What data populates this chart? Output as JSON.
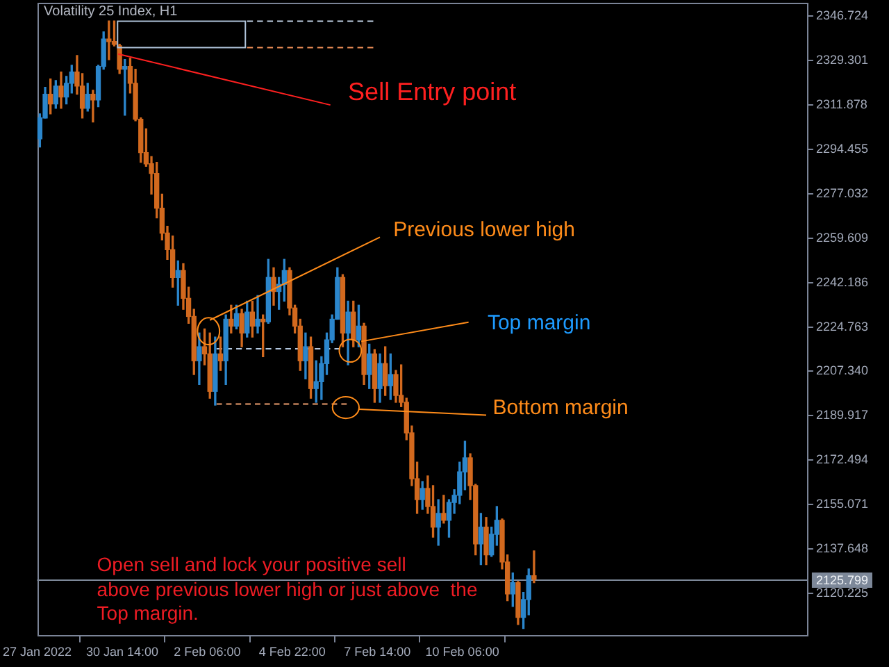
{
  "chart_data": {
    "type": "candlestick",
    "title": "Volatility 25 Index, H1",
    "annotations": [
      {
        "text": "Sell Entry point",
        "x": "2022-01-30T11:00",
        "y": 2331.9
      },
      {
        "text": "Previous lower high",
        "x": "2022-02-02T07:00",
        "y": 2223.1
      },
      {
        "text": "Top margin",
        "x": "2022-02-07T02:00",
        "y": 2219.1
      },
      "Bottom margin",
      "Open sell and lock your positive sell\nabove previous lower high or just above  the\nTop margin."
    ],
    "xlim": [
      "2022-01-27T22:00",
      "2022-02-21T02:00"
    ],
    "xticks": [
      {
        "value": "2022-01-27T22:00",
        "label": "27 Jan 2022"
      },
      {
        "value": "2022-01-30T14:00",
        "label": "30 Jan 14:00"
      },
      {
        "value": "2022-02-02T06:00",
        "label": "2 Feb 06:00"
      },
      {
        "value": "2022-02-04T22:00",
        "label": "4 Feb 22:00"
      },
      {
        "value": "2022-02-07T14:00",
        "label": "7 Feb 14:00"
      },
      {
        "value": "2022-02-10T06:00",
        "label": "10 Feb 06:00"
      }
    ],
    "ylim": [
      2103.2,
      2352.0
    ],
    "yticks": [
      2346.724,
      2329.301,
      2311.878,
      2294.455,
      2277.032,
      2259.609,
      2242.186,
      2224.763,
      {
        "value": 2207.34,
        "label": "2207.340"
      },
      2189.917,
      2172.494,
      2155.071,
      2137.648,
      2120.225
    ],
    "ref_lines": [
      {
        "axis": "y",
        "value": 2125.799,
        "label": "2125.799",
        "color": "#7d8899"
      }
    ],
    "series": [
      {
        "x": [
          "2022-01-28T00:00",
          "2022-01-28T04:00",
          "2022-01-28T08:00",
          "2022-01-28T12:00",
          "2022-01-28T16:00",
          "2022-01-28T20:00",
          "2022-01-29T00:00",
          "2022-01-29T04:00",
          "2022-01-29T08:00",
          "2022-01-29T12:00",
          "2022-01-29T16:00",
          "2022-01-29T20:00",
          "2022-01-30T00:00",
          "2022-01-30T04:00",
          "2022-01-30T08:00",
          "2022-01-30T12:00",
          "2022-01-30T16:00",
          "2022-01-30T20:00",
          "2022-01-31T00:00",
          "2022-01-31T04:00",
          "2022-01-31T08:00",
          "2022-01-31T12:00",
          "2022-01-31T16:00",
          "2022-01-31T20:00",
          "2022-02-01T00:00",
          "2022-02-01T04:00",
          "2022-02-01T08:00",
          "2022-02-01T12:00",
          "2022-02-01T16:00",
          "2022-02-01T20:00",
          "2022-02-02T00:00",
          "2022-02-02T04:00",
          "2022-02-02T08:00",
          "2022-02-02T12:00",
          "2022-02-02T16:00",
          "2022-02-02T20:00",
          "2022-02-03T00:00",
          "2022-02-03T04:00",
          "2022-02-03T08:00",
          "2022-02-03T12:00",
          "2022-02-03T16:00",
          "2022-02-03T20:00",
          "2022-02-04T00:00",
          "2022-02-04T04:00",
          "2022-02-04T08:00",
          "2022-02-04T12:00",
          "2022-02-04T16:00",
          "2022-02-04T20:00",
          "2022-02-05T00:00",
          "2022-02-05T04:00",
          "2022-02-05T08:00",
          "2022-02-05T12:00",
          "2022-02-05T16:00",
          "2022-02-05T20:00",
          "2022-02-06T00:00",
          "2022-02-06T04:00",
          "2022-02-06T08:00",
          "2022-02-06T12:00",
          "2022-02-06T16:00",
          "2022-02-06T20:00",
          "2022-02-07T00:00",
          "2022-02-07T04:00",
          "2022-02-07T08:00",
          "2022-02-07T12:00",
          "2022-02-07T16:00",
          "2022-02-07T20:00",
          "2022-02-08T00:00",
          "2022-02-08T04:00",
          "2022-02-08T08:00",
          "2022-02-08T12:00",
          "2022-02-08T16:00",
          "2022-02-08T20:00",
          "2022-02-09T00:00",
          "2022-02-09T04:00",
          "2022-02-09T08:00",
          "2022-02-09T12:00",
          "2022-02-09T16:00",
          "2022-02-09T20:00",
          "2022-02-10T00:00",
          "2022-02-10T04:00",
          "2022-02-10T08:00",
          "2022-02-10T12:00",
          "2022-02-10T16:00",
          "2022-02-10T20:00",
          "2022-02-11T00:00",
          "2022-02-11T04:00",
          "2022-02-11T08:00",
          "2022-02-11T12:00",
          "2022-02-11T16:00",
          "2022-02-11T20:00",
          "2022-02-12T00:00",
          "2022-02-12T04:00",
          "2022-02-12T08:00",
          "2022-02-12T12:00"
        ],
        "ohlc": [
          [
            2298.6,
            2308.4,
            2295.4,
            2306.8
          ],
          [
            2306.8,
            2318.8,
            2306.8,
            2316.1
          ],
          [
            2316.1,
            2322.1,
            2308.4,
            2312.3
          ],
          [
            2312.3,
            2321.5,
            2310.6,
            2319.3
          ],
          [
            2319.3,
            2324.8,
            2310.6,
            2315.0
          ],
          [
            2315.0,
            2323.1,
            2312.3,
            2320.4
          ],
          [
            2320.4,
            2327.5,
            2316.6,
            2324.8
          ],
          [
            2324.8,
            2331.3,
            2316.1,
            2319.3
          ],
          [
            2319.3,
            2324.2,
            2306.8,
            2310.6
          ],
          [
            2310.6,
            2320.4,
            2309.5,
            2316.1
          ],
          [
            2316.1,
            2317.7,
            2305.2,
            2313.9
          ],
          [
            2313.9,
            2327.5,
            2311.2,
            2327.0
          ],
          [
            2327.0,
            2340.6,
            2325.9,
            2337.8
          ],
          [
            2337.8,
            2344.9,
            2329.7,
            2336.8
          ],
          [
            2336.8,
            2344.9,
            2335.1,
            2335.7
          ],
          [
            2335.1,
            2335.7,
            2324.2,
            2325.9
          ],
          [
            2325.9,
            2329.7,
            2307.9,
            2327.0
          ],
          [
            2327.0,
            2330.2,
            2316.6,
            2320.4
          ],
          [
            2320.4,
            2325.9,
            2305.7,
            2306.3
          ],
          [
            2306.3,
            2306.8,
            2289.4,
            2293.2
          ],
          [
            2293.2,
            2302.5,
            2287.8,
            2288.8
          ],
          [
            2288.8,
            2291.6,
            2276.9,
            2285.0
          ],
          [
            2285.0,
            2289.4,
            2267.6,
            2271.4
          ],
          [
            2271.4,
            2276.9,
            2258.9,
            2261.6
          ],
          [
            2261.6,
            2264.3,
            2251.3,
            2255.1
          ],
          [
            2255.1,
            2260.5,
            2240.4,
            2244.2
          ],
          [
            2244.2,
            2250.7,
            2233.3,
            2246.9
          ],
          [
            2246.9,
            2249.6,
            2231.7,
            2236.0
          ],
          [
            2236.0,
            2240.4,
            2226.2,
            2228.9
          ],
          [
            2228.9,
            2231.7,
            2206.1,
            2211.5
          ],
          [
            2211.5,
            2222.4,
            2202.2,
            2217.0
          ],
          [
            2217.0,
            2224.0,
            2209.9,
            2214.2
          ],
          [
            2214.2,
            2222.4,
            2196.8,
            2199.5
          ],
          [
            2199.5,
            2220.8,
            2194.1,
            2214.2
          ],
          [
            2214.2,
            2220.8,
            2207.7,
            2211.5
          ],
          [
            2211.5,
            2229.5,
            2202.2,
            2227.8
          ],
          [
            2227.8,
            2233.3,
            2222.4,
            2225.1
          ],
          [
            2225.1,
            2233.3,
            2224.0,
            2230.0
          ],
          [
            2230.0,
            2231.7,
            2217.0,
            2222.4
          ],
          [
            2222.4,
            2234.9,
            2220.8,
            2230.6
          ],
          [
            2230.6,
            2234.9,
            2220.8,
            2225.1
          ],
          [
            2225.1,
            2237.1,
            2222.4,
            2227.8
          ],
          [
            2227.8,
            2229.5,
            2213.1,
            2226.8
          ],
          [
            2226.8,
            2251.3,
            2226.2,
            2244.2
          ],
          [
            2244.2,
            2248.0,
            2233.3,
            2238.7
          ],
          [
            2238.7,
            2244.2,
            2231.7,
            2241.5
          ],
          [
            2241.5,
            2251.3,
            2234.9,
            2246.9
          ],
          [
            2246.9,
            2248.0,
            2229.5,
            2232.2
          ],
          [
            2232.2,
            2233.3,
            2222.4,
            2225.1
          ],
          [
            2225.1,
            2227.8,
            2207.7,
            2211.5
          ],
          [
            2211.5,
            2222.4,
            2204.4,
            2217.0
          ],
          [
            2217.0,
            2220.8,
            2196.8,
            2200.6
          ],
          [
            2200.6,
            2211.5,
            2195.2,
            2203.3
          ],
          [
            2203.3,
            2213.1,
            2196.3,
            2210.4
          ],
          [
            2210.4,
            2222.4,
            2206.1,
            2219.7
          ],
          [
            2219.7,
            2229.5,
            2218.6,
            2227.8
          ],
          [
            2227.8,
            2248.0,
            2227.8,
            2244.2
          ],
          [
            2244.2,
            2245.3,
            2217.0,
            2222.4
          ],
          [
            2222.4,
            2234.9,
            2209.9,
            2230.6
          ],
          [
            2230.6,
            2234.9,
            2217.0,
            2219.7
          ],
          [
            2219.7,
            2233.3,
            2217.0,
            2225.1
          ],
          [
            2225.1,
            2226.2,
            2202.2,
            2206.1
          ],
          [
            2206.1,
            2218.0,
            2200.6,
            2214.2
          ],
          [
            2214.2,
            2215.9,
            2195.2,
            2200.6
          ],
          [
            2200.6,
            2214.2,
            2195.2,
            2210.4
          ],
          [
            2210.4,
            2217.0,
            2197.9,
            2201.7
          ],
          [
            2201.7,
            2214.2,
            2196.3,
            2206.1
          ],
          [
            2206.1,
            2207.7,
            2195.2,
            2197.9
          ],
          [
            2197.9,
            2209.9,
            2193.5,
            2195.2
          ],
          [
            2195.2,
            2196.8,
            2180.5,
            2183.2
          ],
          [
            2183.2,
            2185.9,
            2162.5,
            2165.2
          ],
          [
            2165.2,
            2171.7,
            2151.6,
            2157.0
          ],
          [
            2157.0,
            2164.1,
            2153.2,
            2161.4
          ],
          [
            2161.4,
            2166.3,
            2151.6,
            2154.3
          ],
          [
            2154.3,
            2162.5,
            2142.3,
            2146.2
          ],
          [
            2146.2,
            2157.0,
            2139.1,
            2151.6
          ],
          [
            2151.6,
            2158.7,
            2147.8,
            2148.9
          ],
          [
            2148.9,
            2157.0,
            2142.3,
            2155.9
          ],
          [
            2155.9,
            2160.9,
            2151.6,
            2158.7
          ],
          [
            2158.7,
            2171.7,
            2155.4,
            2167.9
          ],
          [
            2167.9,
            2179.9,
            2160.9,
            2173.4
          ],
          [
            2173.4,
            2175.0,
            2157.0,
            2162.5
          ],
          [
            2162.5,
            2163.0,
            2135.3,
            2139.6
          ],
          [
            2139.6,
            2151.6,
            2131.5,
            2146.2
          ],
          [
            2146.2,
            2150.0,
            2131.5,
            2135.3
          ],
          [
            2135.3,
            2146.2,
            2134.7,
            2143.4
          ],
          [
            2143.4,
            2154.3,
            2139.1,
            2148.9
          ],
          [
            2148.9,
            2149.4,
            2129.8,
            2132.5
          ],
          [
            2132.5,
            2135.3,
            2117.3,
            2120.0
          ],
          [
            2120.0,
            2128.2,
            2115.1,
            2124.4
          ],
          [
            2124.4,
            2124.9,
            2108.0,
            2110.8
          ],
          [
            2110.8,
            2120.6,
            2106.4,
            2117.8
          ],
          [
            2117.8,
            2129.8,
            2111.8,
            2127.1
          ],
          [
            2127.1,
            2136.9,
            2124.4,
            2125.8
          ]
        ],
        "colors": [
          "#2b86cc",
          "#2b86cc",
          "#d2691e",
          "#2b86cc",
          "#d2691e",
          "#2b86cc",
          "#2b86cc",
          "#d2691e",
          "#d2691e",
          "#2b86cc",
          "#d2691e",
          "#2b86cc",
          "#2b86cc",
          "#d2691e",
          "#d2691e",
          "#d2691e",
          "#2b86cc",
          "#d2691e",
          "#d2691e",
          "#d2691e",
          "#d2691e",
          "#d2691e",
          "#d2691e",
          "#d2691e",
          "#d2691e",
          "#d2691e",
          "#2b86cc",
          "#d2691e",
          "#d2691e",
          "#d2691e",
          "#2b86cc",
          "#d2691e",
          "#d2691e",
          "#2b86cc",
          "#d2691e",
          "#2b86cc",
          "#d2691e",
          "#2b86cc",
          "#d2691e",
          "#2b86cc",
          "#d2691e",
          "#2b86cc",
          "#d2691e",
          "#2b86cc",
          "#d2691e",
          "#2b86cc",
          "#2b86cc",
          "#d2691e",
          "#d2691e",
          "#d2691e",
          "#2b86cc",
          "#d2691e",
          "#2b86cc",
          "#2b86cc",
          "#2b86cc",
          "#2b86cc",
          "#2b86cc",
          "#d2691e",
          "#2b86cc",
          "#d2691e",
          "#2b86cc",
          "#d2691e",
          "#2b86cc",
          "#d2691e",
          "#2b86cc",
          "#d2691e",
          "#2b86cc",
          "#d2691e",
          "#d2691e",
          "#d2691e",
          "#d2691e",
          "#d2691e",
          "#2b86cc",
          "#d2691e",
          "#d2691e",
          "#2b86cc",
          "#d2691e",
          "#2b86cc",
          "#2b86cc",
          "#2b86cc",
          "#2b86cc",
          "#d2691e",
          "#d2691e",
          "#2b86cc",
          "#d2691e",
          "#2b86cc",
          "#2b86cc",
          "#d2691e",
          "#d2691e",
          "#2b86cc",
          "#d2691e",
          "#2b86cc",
          "#2b86cc",
          "#d2691e"
        ]
      },
      {
        "type": "line",
        "x": [
          "2022-02-03T12:00",
          "2022-02-07T11:00"
        ],
        "values": [
          2344.8,
          2344.8
        ],
        "color": "#c0d0e4",
        "line_style": "dashed"
      },
      {
        "type": "line",
        "x": [
          "2022-02-03T12:00",
          "2022-02-07T11:00"
        ],
        "values": [
          2334.4,
          2334.4
        ],
        "color": "#f09058",
        "line_style": "dashed"
      },
      {
        "type": "line",
        "x": [
          "2022-02-02T13:00",
          "2022-02-06T10:00"
        ],
        "values": [
          2216.2,
          2216.2
        ],
        "color": "#b4c8e0",
        "line_style": "dashed"
      },
      {
        "type": "line",
        "x": [
          "2022-02-02T13:00",
          "2022-02-06T15:00"
        ],
        "values": [
          2194.5,
          2194.5
        ],
        "color": "#f0a070",
        "line_style": "dashed"
      }
    ]
  }
}
